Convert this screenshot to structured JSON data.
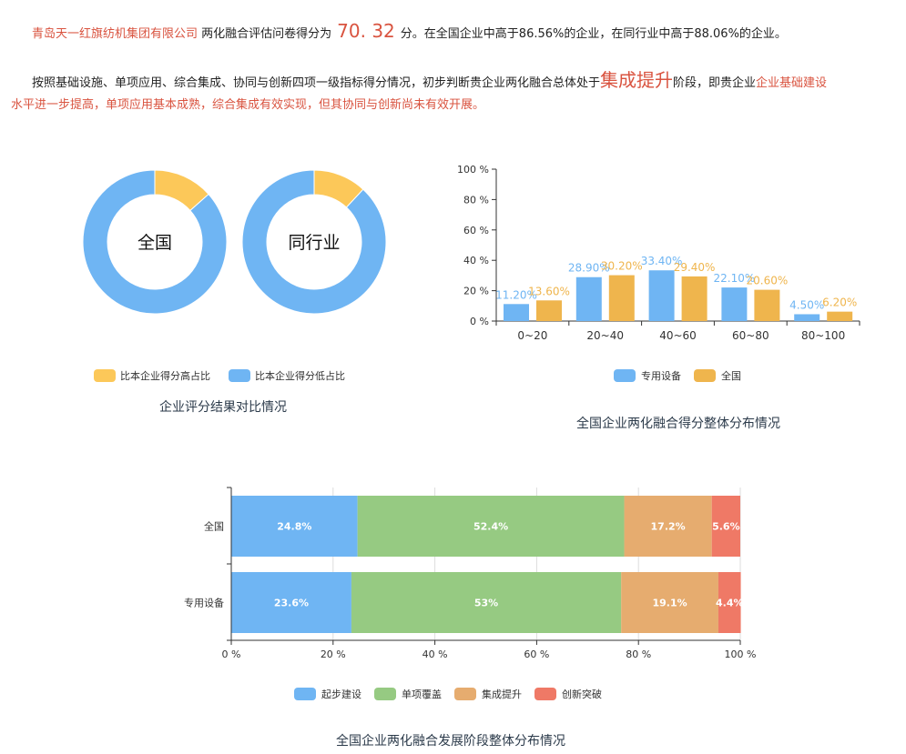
{
  "summary": {
    "company": "青岛天一红旗纺机集团有限公司",
    "text1": "两化融合评估问卷得分为",
    "score": "70. 32",
    "text2": "分。在全国企业中高于86.56%的企业，在同行业中高于88.06%的企业。",
    "p2_text1": "按照基础设施、单项应用、综合集成、协同与创新四项一级指标得分情况，初步判断贵企业两化融合总体处于",
    "stage": "集成提升",
    "p2_text2": "阶段，即贵企业",
    "p2_red_line1": "企业基础建设",
    "p2_red_line2": "水平进一步提高，单项应用基本成熟，综合集成有效实现，但其协同与创新尚未有效开展。"
  },
  "colors": {
    "blue": "#6fb5f3",
    "yellow": "#fcc859",
    "orange": "#efb54d",
    "green": "#96ca82",
    "tan": "#e6ac6f",
    "red": "#ef7966"
  },
  "chart_data": [
    {
      "type": "pie",
      "title": "企业评分结果对比情况",
      "donuts": [
        {
          "label": "全国",
          "values": [
            13.44,
            86.56
          ]
        },
        {
          "label": "同行业",
          "values": [
            11.94,
            88.06
          ]
        }
      ],
      "legend": [
        "比本企业得分高占比",
        "比本企业得分低占比"
      ],
      "legend_placement": "bottom"
    },
    {
      "type": "bar",
      "title": "全国企业两化融合得分整体分布情况",
      "categories": [
        "0~20",
        "20~40",
        "40~60",
        "60~80",
        "80~100"
      ],
      "series": [
        {
          "name": "专用设备",
          "values": [
            11.2,
            28.9,
            33.4,
            22.1,
            4.5
          ],
          "labels": [
            "11.20%",
            "28.90%",
            "33.40%",
            "22.10%",
            "4.50%"
          ]
        },
        {
          "name": "全国",
          "values": [
            13.6,
            30.2,
            29.4,
            20.6,
            6.2
          ],
          "labels": [
            "13.60%",
            "30.20%",
            "29.40%",
            "20.60%",
            "6.20%"
          ]
        }
      ],
      "ylim": [
        0,
        100
      ],
      "yticks": [
        "0 %",
        "20 %",
        "40 %",
        "60 %",
        "80 %",
        "100 %"
      ],
      "legend_placement": "bottom"
    },
    {
      "type": "bar",
      "orientation": "horizontal-stacked",
      "title": "全国企业两化融合发展阶段整体分布情况",
      "categories": [
        "全国",
        "专用设备"
      ],
      "series": [
        {
          "name": "起步建设",
          "values": [
            24.8,
            23.6
          ],
          "labels": [
            "24.8%",
            "23.6%"
          ]
        },
        {
          "name": "单项覆盖",
          "values": [
            52.4,
            53
          ],
          "labels": [
            "52.4%",
            "53%"
          ]
        },
        {
          "name": "集成提升",
          "values": [
            17.2,
            19.1
          ],
          "labels": [
            "17.2%",
            "19.1%"
          ]
        },
        {
          "name": "创新突破",
          "values": [
            5.6,
            4.4
          ],
          "labels": [
            "5.6%",
            "4.4%"
          ]
        }
      ],
      "xlim": [
        0,
        100
      ],
      "xticks": [
        "0 %",
        "20 %",
        "40 %",
        "60 %",
        "80 %",
        "100 %"
      ],
      "grid": true,
      "legend_placement": "bottom"
    }
  ]
}
